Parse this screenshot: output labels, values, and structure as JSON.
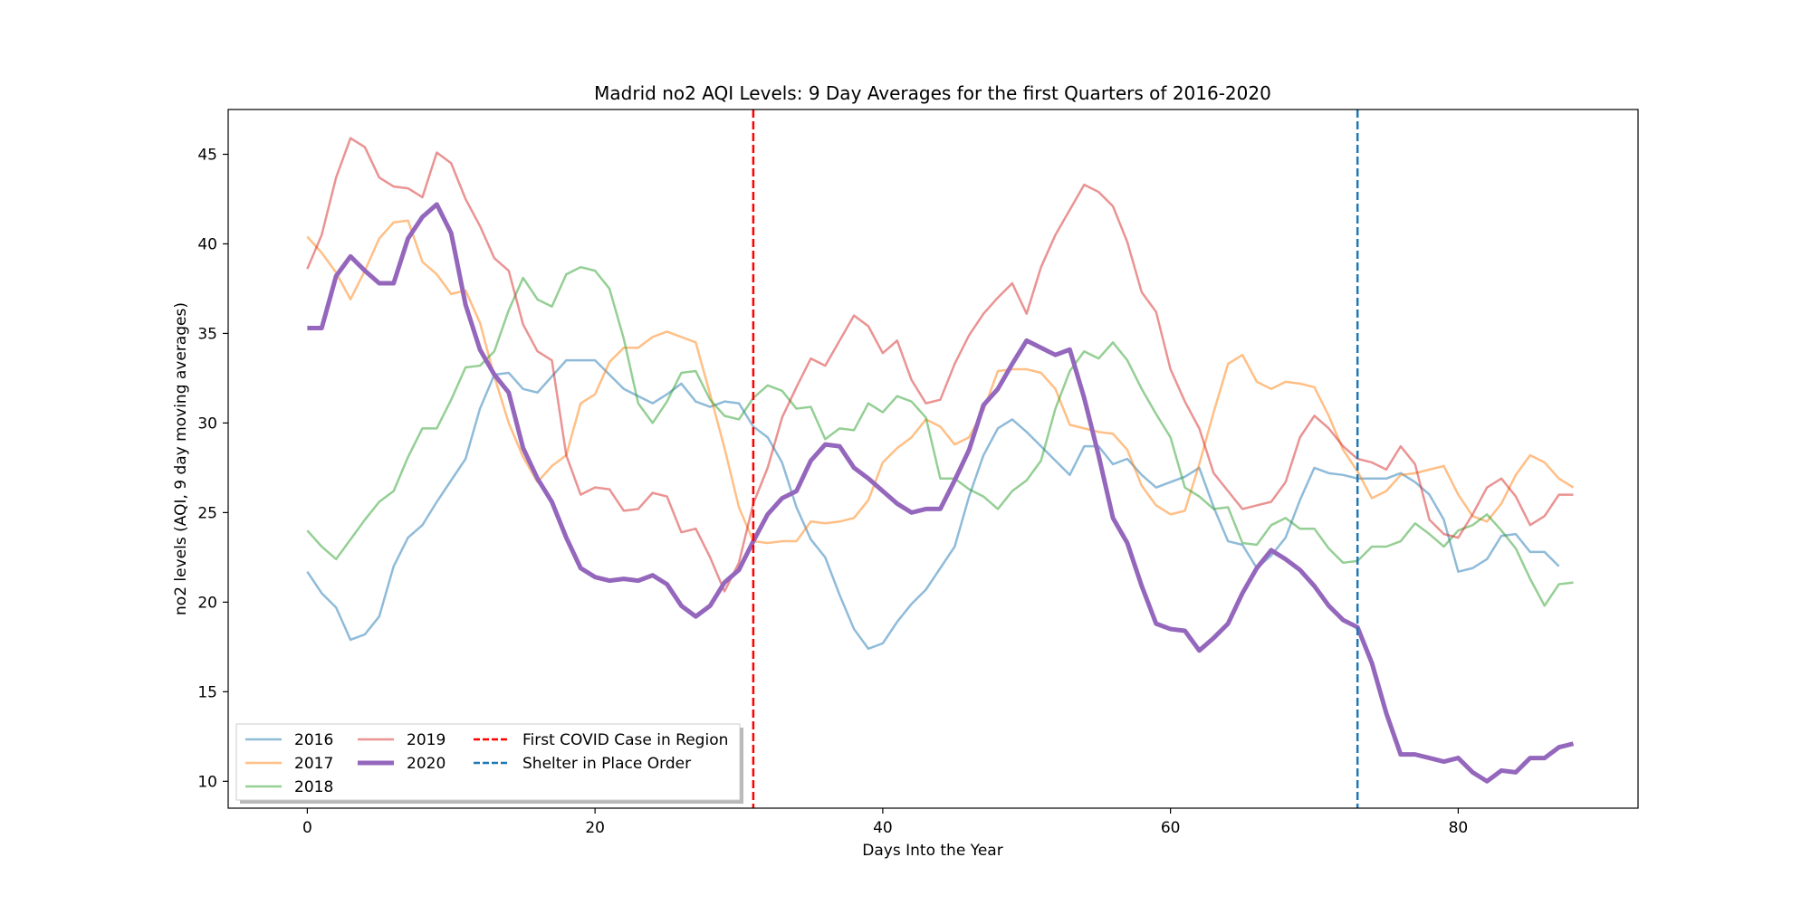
{
  "chart_data": {
    "type": "line",
    "title": "Madrid no2 AQI Levels: 9 Day Averages for the first Quarters of 2016-2020",
    "xlabel": "Days Into the Year",
    "ylabel": "no2 levels (AQI, 9 day moving averages)",
    "xlim": [
      -5.5,
      92.5
    ],
    "ylim": [
      8.5,
      47.5
    ],
    "xticks": [
      0,
      20,
      40,
      60,
      80
    ],
    "yticks": [
      10,
      15,
      20,
      25,
      30,
      35,
      40,
      45
    ],
    "grid": false,
    "legend_position": "lower-left",
    "x": [
      0,
      1,
      2,
      3,
      4,
      5,
      6,
      7,
      8,
      9,
      10,
      11,
      12,
      13,
      14,
      15,
      16,
      17,
      18,
      19,
      20,
      21,
      22,
      23,
      24,
      25,
      26,
      27,
      28,
      29,
      30,
      31,
      32,
      33,
      34,
      35,
      36,
      37,
      38,
      39,
      40,
      41,
      42,
      43,
      44,
      45,
      46,
      47,
      48,
      49,
      50,
      51,
      52,
      53,
      54,
      55,
      56,
      57,
      58,
      59,
      60,
      61,
      62,
      63,
      64,
      65,
      66,
      67,
      68,
      69,
      70,
      71,
      72,
      73,
      74,
      75,
      76,
      77,
      78,
      79,
      80,
      81,
      82,
      83,
      84,
      85,
      86,
      87,
      88
    ],
    "series": [
      {
        "name": "2016",
        "color": "#1f77b4",
        "opacity": 0.5,
        "width": 2.5,
        "values": [
          21.7,
          20.5,
          19.7,
          17.9,
          18.2,
          19.2,
          22.0,
          23.6,
          24.3,
          25.6,
          26.8,
          28.0,
          30.8,
          32.7,
          32.8,
          31.9,
          31.7,
          32.6,
          33.5,
          33.5,
          33.5,
          32.7,
          31.9,
          31.5,
          31.1,
          31.6,
          32.2,
          31.2,
          30.9,
          31.2,
          31.1,
          29.8,
          29.2,
          27.8,
          25.3,
          23.5,
          22.5,
          20.4,
          18.5,
          17.4,
          17.7,
          18.9,
          19.9,
          20.7,
          21.9,
          23.1,
          25.9,
          28.2,
          29.7,
          30.2,
          29.5,
          28.7,
          27.9,
          27.1,
          28.7,
          28.7,
          27.7,
          28.0,
          27.1,
          26.4,
          26.7,
          27.0,
          27.5,
          25.3,
          23.4,
          23.2,
          21.9,
          22.6,
          23.6,
          25.7,
          27.5,
          27.2,
          27.1,
          26.9,
          26.9,
          26.9,
          27.2,
          26.7,
          26.0,
          24.6,
          21.7,
          21.9,
          22.4,
          23.7,
          23.8,
          22.8,
          22.8,
          22.0,
          null
        ]
      },
      {
        "name": "2017",
        "color": "#ff7f0e",
        "opacity": 0.5,
        "width": 2.5,
        "values": [
          40.4,
          39.5,
          38.4,
          36.9,
          38.5,
          40.3,
          41.2,
          41.3,
          39.0,
          38.3,
          37.2,
          37.4,
          35.6,
          32.6,
          30.0,
          28.1,
          26.7,
          27.6,
          28.2,
          31.1,
          31.6,
          33.4,
          34.2,
          34.2,
          34.8,
          35.1,
          34.8,
          34.5,
          31.6,
          28.6,
          25.3,
          23.4,
          23.3,
          23.4,
          23.4,
          24.5,
          24.4,
          24.5,
          24.7,
          25.7,
          27.8,
          28.6,
          29.2,
          30.2,
          29.8,
          28.8,
          29.2,
          30.7,
          32.9,
          33.0,
          33.0,
          32.8,
          31.9,
          29.9,
          29.7,
          29.5,
          29.4,
          28.5,
          26.5,
          25.4,
          24.9,
          25.1,
          27.7,
          30.6,
          33.3,
          33.8,
          32.3,
          31.9,
          32.3,
          32.2,
          32.0,
          30.4,
          28.5,
          27.3,
          25.8,
          26.2,
          27.1,
          27.2,
          27.4,
          27.6,
          26.0,
          24.8,
          24.5,
          25.5,
          27.1,
          28.2,
          27.8,
          26.9,
          26.4
        ]
      },
      {
        "name": "2018",
        "color": "#2ca02c",
        "opacity": 0.5,
        "width": 2.5,
        "values": [
          24.0,
          23.1,
          22.4,
          23.5,
          24.6,
          25.6,
          26.2,
          28.1,
          29.7,
          29.7,
          31.3,
          33.1,
          33.2,
          34.0,
          36.3,
          38.1,
          36.9,
          36.5,
          38.3,
          38.7,
          38.5,
          37.5,
          34.7,
          31.1,
          30.0,
          31.2,
          32.8,
          32.9,
          31.3,
          30.4,
          30.2,
          31.4,
          32.1,
          31.8,
          30.8,
          30.9,
          29.1,
          29.7,
          29.6,
          31.1,
          30.6,
          31.5,
          31.2,
          30.3,
          26.9,
          26.9,
          26.3,
          25.9,
          25.2,
          26.2,
          26.8,
          27.9,
          30.8,
          32.9,
          34.0,
          33.6,
          34.5,
          33.5,
          31.9,
          30.5,
          29.2,
          26.4,
          25.9,
          25.2,
          25.3,
          23.3,
          23.2,
          24.3,
          24.7,
          24.1,
          24.1,
          23.0,
          22.2,
          22.3,
          23.1,
          23.1,
          23.4,
          24.4,
          23.8,
          23.1,
          24.0,
          24.3,
          24.9,
          24.0,
          23.0,
          21.3,
          19.8,
          21.0,
          21.1
        ]
      },
      {
        "name": "2019",
        "color": "#d62728",
        "opacity": 0.5,
        "width": 2.5,
        "values": [
          38.6,
          40.5,
          43.7,
          45.9,
          45.4,
          43.7,
          43.2,
          43.1,
          42.6,
          45.1,
          44.5,
          42.5,
          41.0,
          39.2,
          38.5,
          35.5,
          34.0,
          33.5,
          28.2,
          26.0,
          26.4,
          26.3,
          25.1,
          25.2,
          26.1,
          25.9,
          23.9,
          24.1,
          22.5,
          20.6,
          22.2,
          25.5,
          27.5,
          30.3,
          32.0,
          33.6,
          33.2,
          34.6,
          36.0,
          35.4,
          33.9,
          34.6,
          32.4,
          31.1,
          31.3,
          33.3,
          34.9,
          36.1,
          37.0,
          37.8,
          36.1,
          38.7,
          40.5,
          41.9,
          43.3,
          42.9,
          42.1,
          40.1,
          37.3,
          36.2,
          33.0,
          31.2,
          29.7,
          27.2,
          26.2,
          25.2,
          25.4,
          25.6,
          26.7,
          29.2,
          30.4,
          29.7,
          28.7,
          28.0,
          27.8,
          27.4,
          28.7,
          27.7,
          24.6,
          23.8,
          23.6,
          24.9,
          26.4,
          26.9,
          25.9,
          24.3,
          24.8,
          26.0,
          26.0
        ]
      },
      {
        "name": "2020",
        "color": "#9467bd",
        "opacity": 1.0,
        "width": 5,
        "values": [
          35.3,
          35.3,
          38.2,
          39.3,
          38.5,
          37.8,
          37.8,
          40.3,
          41.5,
          42.2,
          40.6,
          36.6,
          34.1,
          32.7,
          31.7,
          28.6,
          26.9,
          25.6,
          23.6,
          21.9,
          21.4,
          21.2,
          21.3,
          21.2,
          21.5,
          21.0,
          19.8,
          19.2,
          19.8,
          21.1,
          21.8,
          23.4,
          24.9,
          25.8,
          26.2,
          27.9,
          28.8,
          28.7,
          27.5,
          26.9,
          26.2,
          25.5,
          25.0,
          25.2,
          25.2,
          26.8,
          28.5,
          31.0,
          31.9,
          33.3,
          34.6,
          34.2,
          33.8,
          34.1,
          31.4,
          28.2,
          24.7,
          23.3,
          20.9,
          18.8,
          18.5,
          18.4,
          17.3,
          18.0,
          18.8,
          20.5,
          21.9,
          22.9,
          22.4,
          21.8,
          20.9,
          19.8,
          19.0,
          18.6,
          16.6,
          13.8,
          11.5,
          11.5,
          11.3,
          11.1,
          11.3,
          10.5,
          10.0,
          10.6,
          10.5,
          11.3,
          11.3,
          11.9,
          12.1
        ]
      }
    ],
    "vlines": [
      {
        "label": "First COVID Case in Region",
        "x": 31,
        "color": "#ff0000",
        "style": "dashed"
      },
      {
        "label": "Shelter in Place Order",
        "x": 73,
        "color": "#1f77b4",
        "style": "dashed"
      }
    ]
  }
}
